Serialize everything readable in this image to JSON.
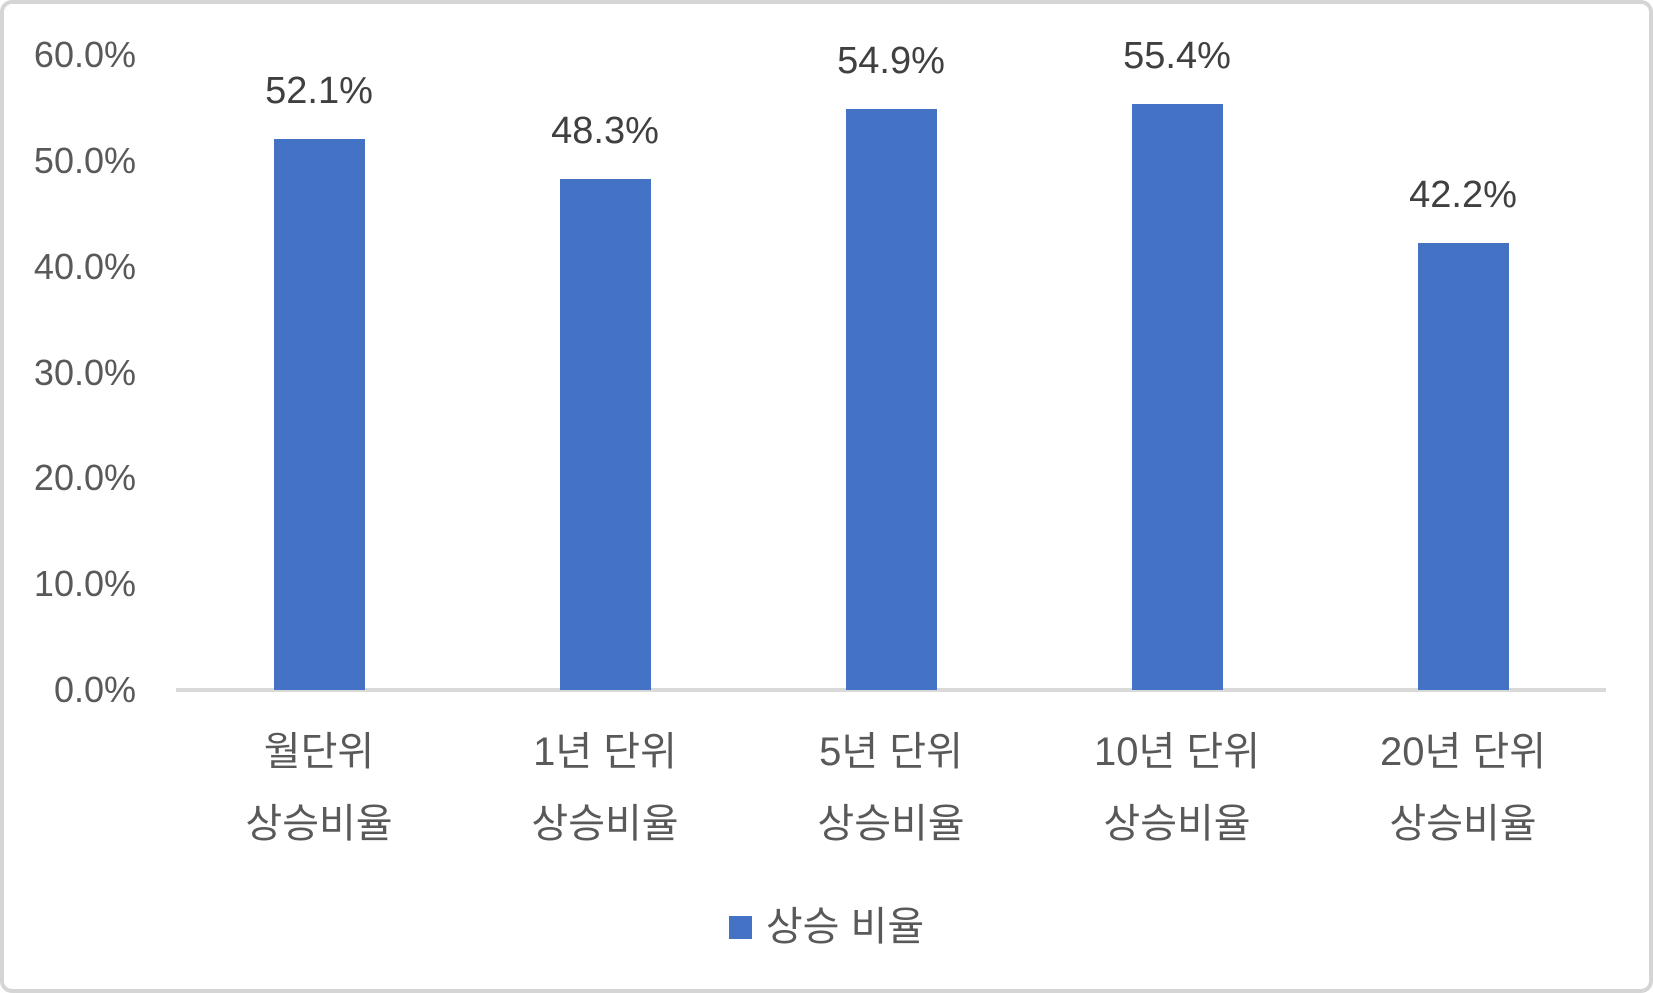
{
  "chart_data": {
    "type": "bar",
    "title": "",
    "xlabel": "",
    "ylabel": "",
    "categories": [
      [
        "월단위",
        "상승비율"
      ],
      [
        "1년 단위",
        "상승비율"
      ],
      [
        "5년 단위",
        "상승비율"
      ],
      [
        "10년 단위",
        "상승비율"
      ],
      [
        "20년 단위",
        "상승비율"
      ]
    ],
    "series": [
      {
        "name": "상승 비율",
        "values": [
          52.1,
          48.3,
          54.9,
          55.4,
          42.2
        ]
      }
    ],
    "data_labels": [
      "52.1%",
      "48.3%",
      "54.9%",
      "55.4%",
      "42.2%"
    ],
    "y_ticks": [
      {
        "value": 60,
        "label": "60.0%"
      },
      {
        "value": 50,
        "label": "50.0%"
      },
      {
        "value": 40,
        "label": "40.0%"
      },
      {
        "value": 30,
        "label": "30.0%"
      },
      {
        "value": 20,
        "label": "20.0%"
      },
      {
        "value": 10,
        "label": "10.0%"
      },
      {
        "value": 0,
        "label": "0.0%"
      }
    ],
    "ylim": [
      0,
      60
    ],
    "grid": false,
    "legend_position": "bottom",
    "colors": {
      "bar": "#4472C4",
      "axis_line": "#D9D9D9",
      "axis_text": "#595959",
      "data_label_text": "#404040",
      "frame_border": "#D5D5D5"
    }
  },
  "legend": {
    "label": "상승 비율"
  }
}
